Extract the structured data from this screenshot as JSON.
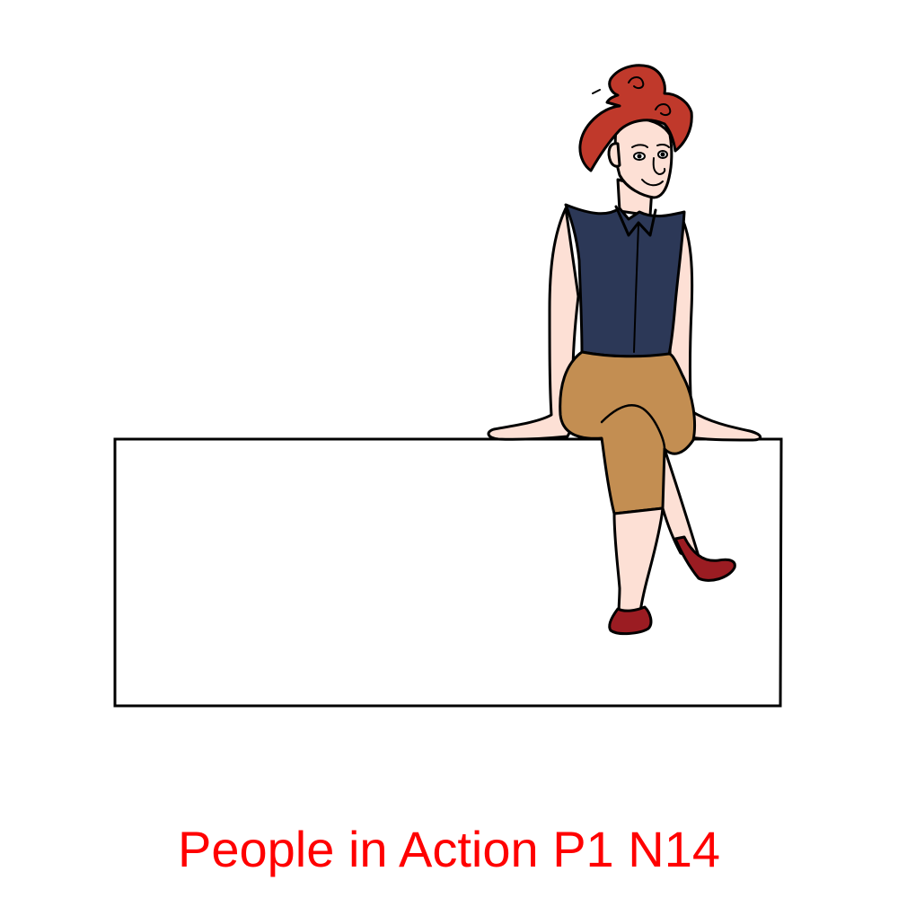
{
  "caption": "People in Action P1 N14",
  "colors": {
    "caption": "#ff0000",
    "hair": "#c0392b",
    "skin": "#fde0d5",
    "shirt": "#2c3857",
    "pants": "#c38e52",
    "shoes": "#9b1c22",
    "outline": "#000000",
    "box_fill": "#ffffff"
  },
  "scene": {
    "subject": "woman-sitting-on-box",
    "icons": [
      "box-icon",
      "woman-icon"
    ]
  }
}
